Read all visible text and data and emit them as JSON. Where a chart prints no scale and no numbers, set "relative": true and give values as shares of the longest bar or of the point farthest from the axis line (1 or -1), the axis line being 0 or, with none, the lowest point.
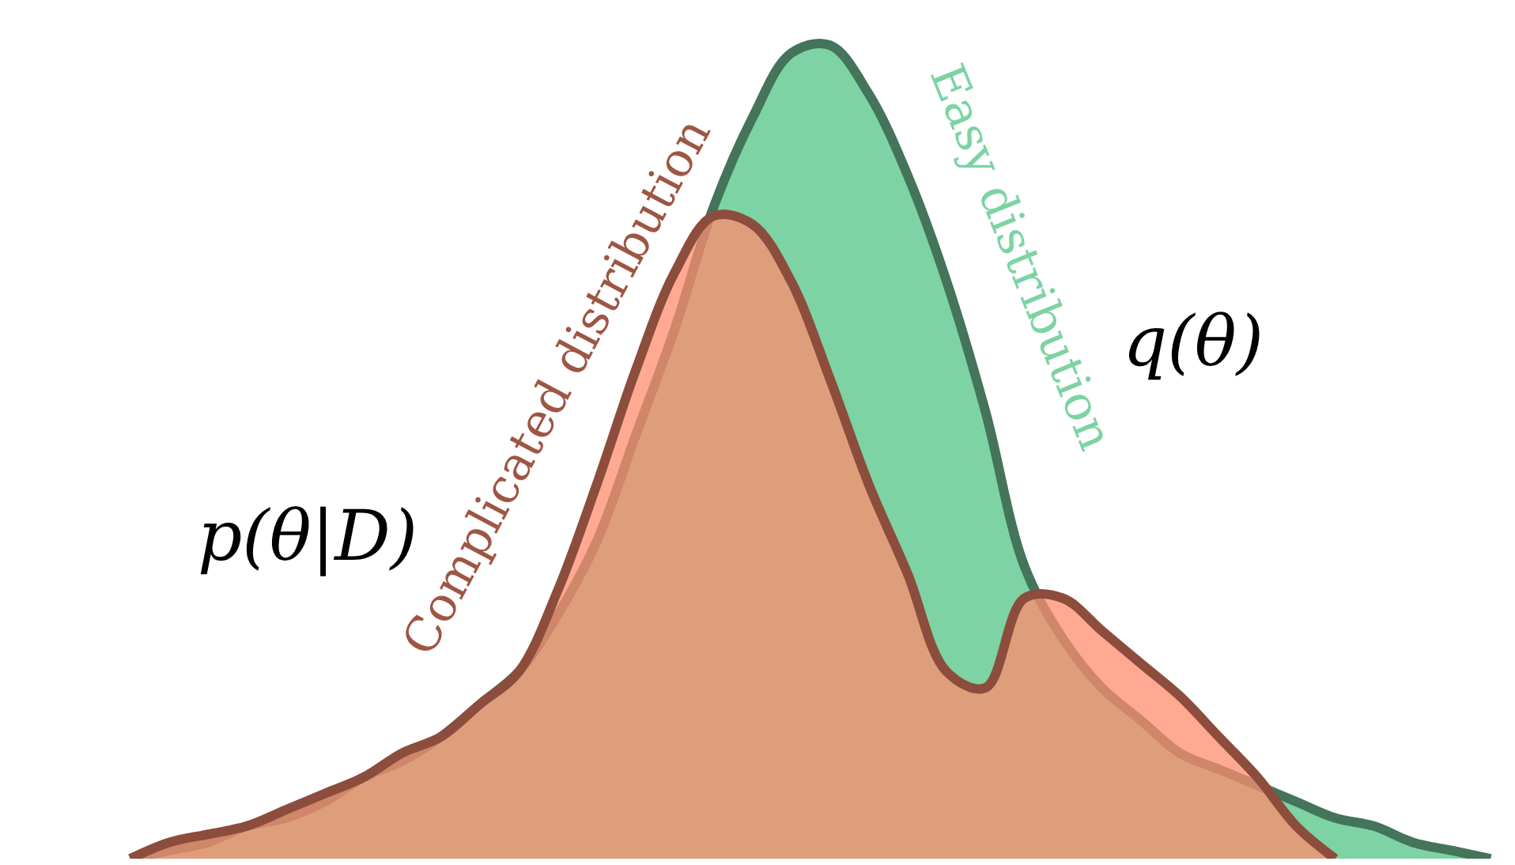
{
  "chart_data": {
    "type": "area",
    "relative": true,
    "categories": [
      null,
      null,
      null,
      null,
      null,
      null,
      null,
      null,
      null,
      null,
      null,
      null,
      null,
      null,
      null,
      null,
      null,
      null,
      null,
      null,
      null,
      null,
      null,
      null,
      null,
      null,
      null,
      null,
      null,
      null,
      null,
      null,
      null,
      null,
      null,
      null
    ],
    "series": [
      {
        "name": "q(θ)",
        "color": "#7dd3a3",
        "values": [
          0,
          0.01,
          0.02,
          0.04,
          0.05,
          0.07,
          0.1,
          0.12,
          0.15,
          0.19,
          0.23,
          0.3,
          0.39,
          0.52,
          0.65,
          0.8,
          0.91,
          0.99,
          1.0,
          0.94,
          0.84,
          0.71,
          0.55,
          0.36,
          0.27,
          0.21,
          0.17,
          0.13,
          0.11,
          0.09,
          0.07,
          0.05,
          0.04,
          0.02,
          0.01,
          0
        ]
      },
      {
        "name": "p(θ|D)",
        "color": "#ff8c6e",
        "values": [
          0,
          0.02,
          0.03,
          0.04,
          0.06,
          0.08,
          0.1,
          0.13,
          0.15,
          0.19,
          0.23,
          0.33,
          0.46,
          0.6,
          0.72,
          0.79,
          0.78,
          0.71,
          0.59,
          0.46,
          0.35,
          0.23,
          0.21,
          0.32,
          0.32,
          0.28,
          0.24,
          0.2,
          0.15,
          0.1,
          0.04,
          0,
          null,
          null,
          null,
          null
        ]
      }
    ],
    "annotations": [
      "Complicated distribution",
      "Easy distribution"
    ],
    "legend": false
  }
}
